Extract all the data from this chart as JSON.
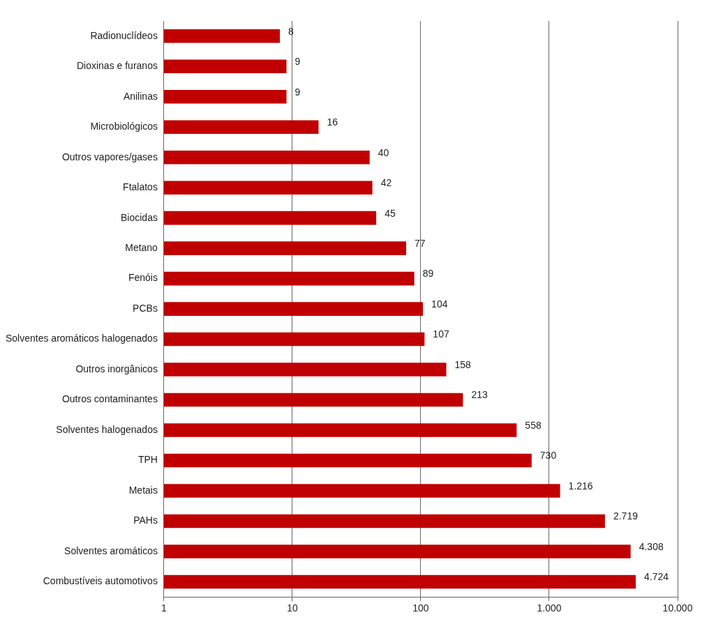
{
  "chart_data": {
    "type": "bar",
    "orientation": "horizontal",
    "log": "x",
    "categories": [
      "Radionuclídeos",
      "Dioxinas e furanos",
      "Anilinas",
      "Microbiológicos",
      "Outros vapores/gases",
      "Ftalatos",
      "Biocidas",
      "Metano",
      "Fenóis",
      "PCBs",
      "Solventes aromáticos halogenados",
      "Outros inorgânicos",
      "Outros contaminantes",
      "Solventes halogenados",
      "TPH",
      "Metais",
      "PAHs",
      "Solventes aromáticos",
      "Combustíveis automotivos"
    ],
    "values": [
      8,
      9,
      9,
      16,
      40,
      42,
      45,
      77,
      89,
      104,
      107,
      158,
      213,
      558,
      730,
      1216,
      2719,
      4308,
      4724
    ],
    "value_labels": [
      "8",
      "9",
      "9",
      "16",
      "40",
      "42",
      "45",
      "77",
      "89",
      "104",
      "107",
      "158",
      "213",
      "558",
      "730",
      "1.216",
      "2.719",
      "4.308",
      "4.724"
    ],
    "color": "#c00000",
    "xlim": [
      1,
      10000
    ],
    "xticks": [
      1,
      10,
      100,
      {
        "value": 1000,
        "label": "1.000"
      },
      {
        "value": 10000,
        "label": "10.000"
      }
    ],
    "grid": "x",
    "legend": false
  }
}
